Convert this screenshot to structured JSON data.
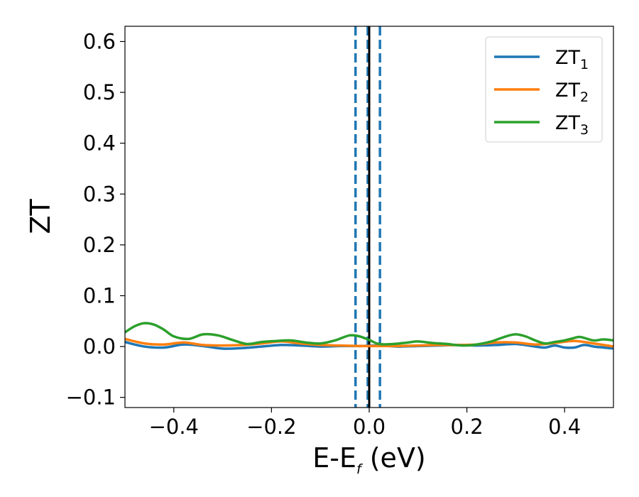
{
  "chart_data": {
    "type": "line",
    "xlabel": "E-E",
    "xlabel_sub": "f",
    "xlabel_unit": " (eV)",
    "ylabel": "ZT",
    "xlim": [
      -0.5,
      0.5
    ],
    "ylim": [
      -0.12,
      0.63
    ],
    "x_ticks": [
      -0.4,
      -0.2,
      0.0,
      0.2,
      0.4
    ],
    "x_tick_labels": [
      "−0.4",
      "−0.2",
      "0.0",
      "0.2",
      "0.4"
    ],
    "y_ticks": [
      -0.1,
      0.0,
      0.1,
      0.2,
      0.3,
      0.4,
      0.5,
      0.6
    ],
    "y_tick_labels": [
      "−0.1",
      "0.0",
      "0.1",
      "0.2",
      "0.3",
      "0.4",
      "0.5",
      "0.6"
    ],
    "grid": false,
    "legend_position": "top-right",
    "vertical_lines": [
      {
        "x": -0.028,
        "style": "dashed",
        "color": "#1f77b4"
      },
      {
        "x": -0.003,
        "style": "dashed",
        "color": "#1f77b4"
      },
      {
        "x": 0.0,
        "style": "solid",
        "color": "#000000"
      },
      {
        "x": 0.022,
        "style": "dashed",
        "color": "#1f77b4"
      }
    ],
    "series": [
      {
        "name": "ZT",
        "sub": "1",
        "color": "#1f77b4",
        "x": [
          -0.5,
          -0.46,
          -0.42,
          -0.38,
          -0.34,
          -0.3,
          -0.26,
          -0.22,
          -0.18,
          -0.14,
          -0.1,
          -0.06,
          -0.02,
          0.02,
          0.06,
          0.1,
          0.14,
          0.18,
          0.22,
          0.26,
          0.3,
          0.34,
          0.36,
          0.38,
          0.4,
          0.42,
          0.44,
          0.46,
          0.48,
          0.5
        ],
        "y": [
          0.009,
          0.0,
          -0.002,
          0.004,
          0.001,
          -0.004,
          -0.003,
          0.0,
          0.003,
          0.002,
          0.0,
          0.001,
          0.001,
          0.002,
          0.0,
          0.001,
          0.002,
          0.003,
          0.002,
          0.003,
          0.005,
          0.0,
          -0.002,
          0.002,
          -0.002,
          -0.002,
          0.003,
          0.0,
          -0.002,
          -0.004
        ]
      },
      {
        "name": "ZT",
        "sub": "2",
        "color": "#ff7f0e",
        "x": [
          -0.5,
          -0.46,
          -0.42,
          -0.38,
          -0.34,
          -0.3,
          -0.26,
          -0.22,
          -0.18,
          -0.14,
          -0.1,
          -0.06,
          -0.02,
          0.02,
          0.06,
          0.1,
          0.14,
          0.18,
          0.22,
          0.26,
          0.3,
          0.34,
          0.38,
          0.42,
          0.46,
          0.5
        ],
        "y": [
          0.015,
          0.006,
          0.004,
          0.008,
          0.003,
          0.002,
          0.003,
          0.006,
          0.01,
          0.006,
          0.003,
          0.002,
          0.001,
          0.001,
          0.001,
          0.002,
          0.003,
          0.003,
          0.004,
          0.008,
          0.008,
          0.004,
          0.007,
          0.011,
          0.006,
          0.0
        ]
      },
      {
        "name": "ZT",
        "sub": "3",
        "color": "#2ca02c",
        "x": [
          -0.5,
          -0.48,
          -0.46,
          -0.44,
          -0.42,
          -0.4,
          -0.37,
          -0.34,
          -0.31,
          -0.28,
          -0.25,
          -0.22,
          -0.19,
          -0.16,
          -0.13,
          -0.1,
          -0.07,
          -0.04,
          -0.02,
          0.0,
          0.02,
          0.05,
          0.08,
          0.1,
          0.13,
          0.16,
          0.19,
          0.22,
          0.25,
          0.28,
          0.3,
          0.32,
          0.34,
          0.36,
          0.38,
          0.4,
          0.42,
          0.43,
          0.44,
          0.46,
          0.48,
          0.5
        ],
        "y": [
          0.028,
          0.04,
          0.046,
          0.043,
          0.033,
          0.02,
          0.015,
          0.024,
          0.022,
          0.013,
          0.005,
          0.009,
          0.011,
          0.012,
          0.008,
          0.006,
          0.012,
          0.022,
          0.02,
          0.013,
          0.005,
          0.005,
          0.008,
          0.01,
          0.007,
          0.005,
          0.002,
          0.004,
          0.01,
          0.02,
          0.024,
          0.02,
          0.012,
          0.006,
          0.009,
          0.012,
          0.017,
          0.019,
          0.017,
          0.012,
          0.014,
          0.012
        ]
      }
    ]
  }
}
